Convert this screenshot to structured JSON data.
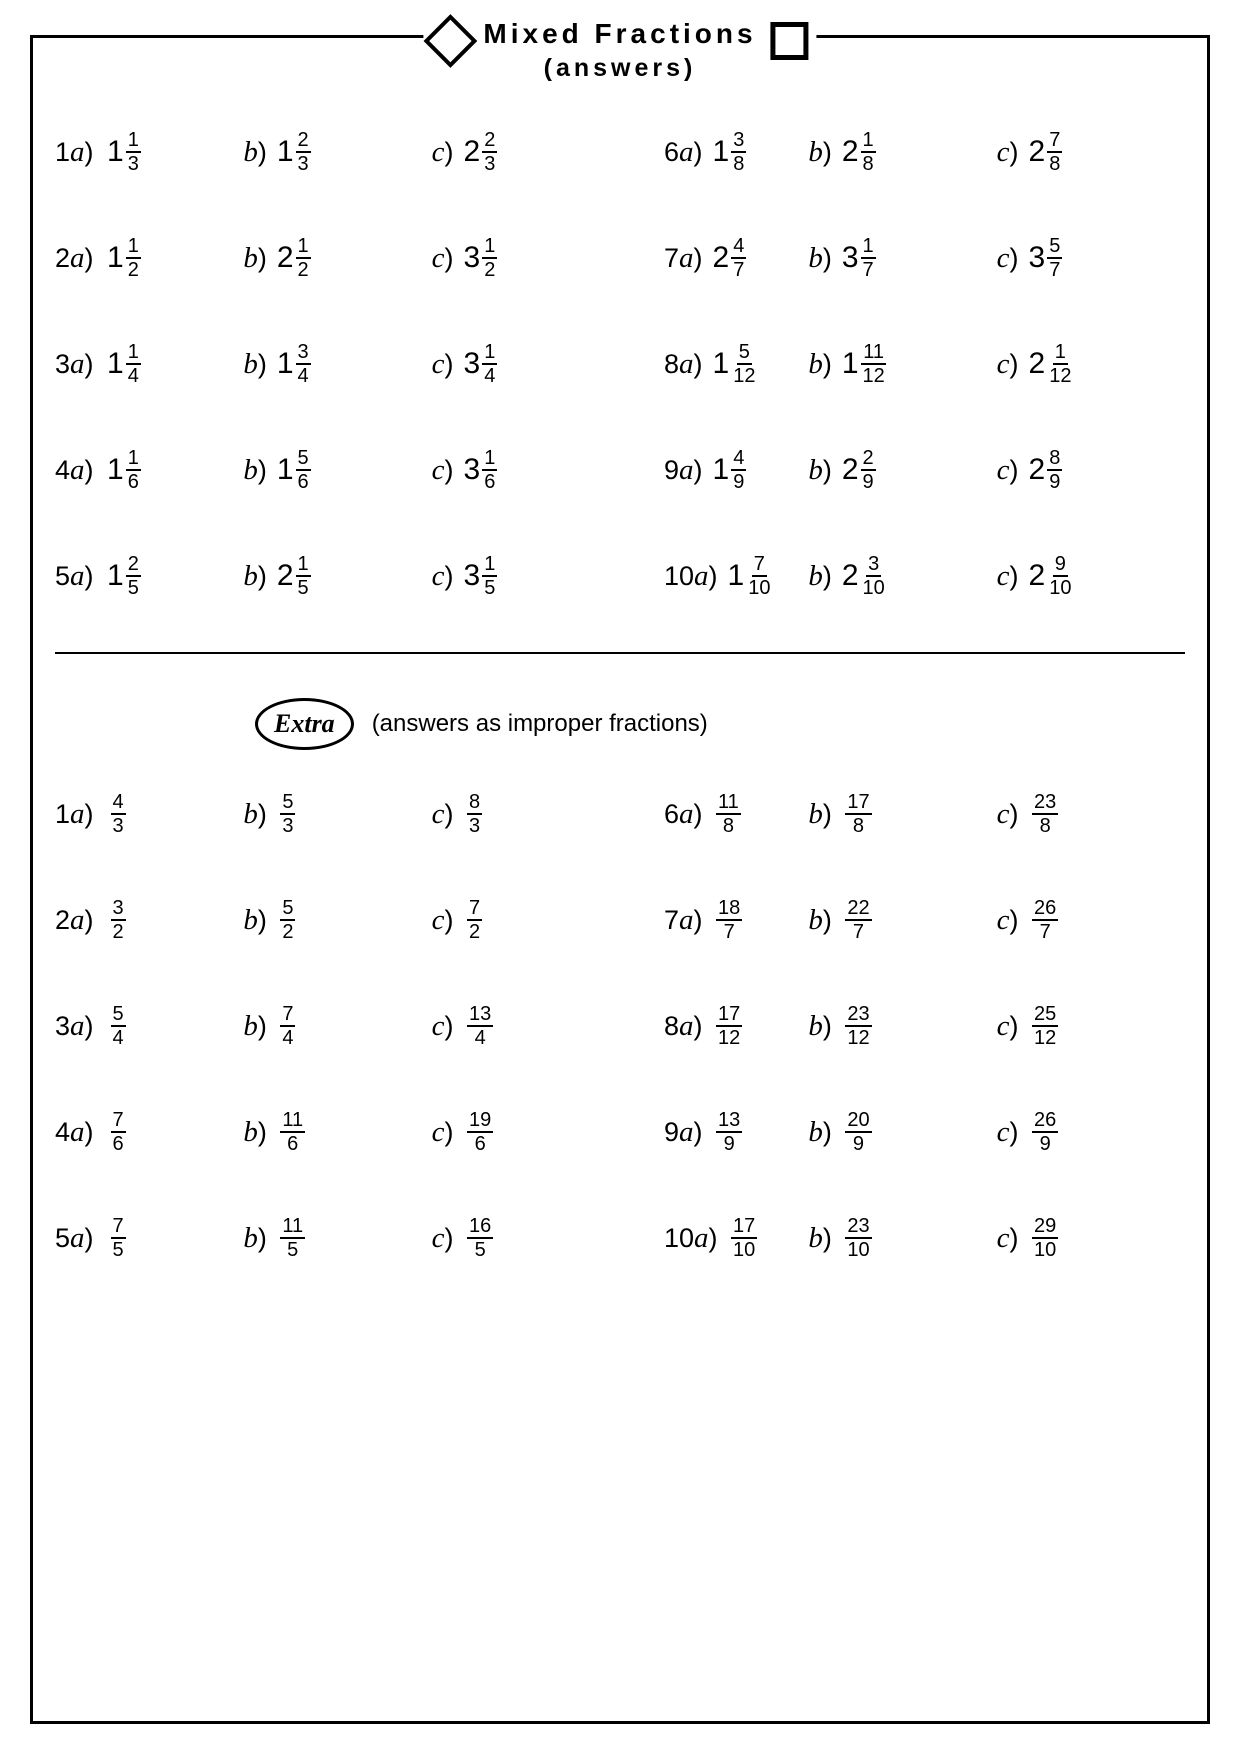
{
  "title": {
    "line1": "Mixed Fractions",
    "line2": "(answers)"
  },
  "extra": {
    "badge": "Extra",
    "sub": "(answers as improper fractions)"
  },
  "mixed": [
    [
      {
        "q": "1",
        "s": "a",
        "w": "1",
        "n": "1",
        "d": "3"
      },
      {
        "q": "",
        "s": "b",
        "w": "1",
        "n": "2",
        "d": "3"
      },
      {
        "q": "",
        "s": "c",
        "w": "2",
        "n": "2",
        "d": "3"
      },
      {
        "q": "6",
        "s": "a",
        "w": "1",
        "n": "3",
        "d": "8"
      },
      {
        "q": "",
        "s": "b",
        "w": "2",
        "n": "1",
        "d": "8"
      },
      {
        "q": "",
        "s": "c",
        "w": "2",
        "n": "7",
        "d": "8"
      }
    ],
    [
      {
        "q": "2",
        "s": "a",
        "w": "1",
        "n": "1",
        "d": "2"
      },
      {
        "q": "",
        "s": "b",
        "w": "2",
        "n": "1",
        "d": "2"
      },
      {
        "q": "",
        "s": "c",
        "w": "3",
        "n": "1",
        "d": "2"
      },
      {
        "q": "7",
        "s": "a",
        "w": "2",
        "n": "4",
        "d": "7"
      },
      {
        "q": "",
        "s": "b",
        "w": "3",
        "n": "1",
        "d": "7"
      },
      {
        "q": "",
        "s": "c",
        "w": "3",
        "n": "5",
        "d": "7"
      }
    ],
    [
      {
        "q": "3",
        "s": "a",
        "w": "1",
        "n": "1",
        "d": "4"
      },
      {
        "q": "",
        "s": "b",
        "w": "1",
        "n": "3",
        "d": "4"
      },
      {
        "q": "",
        "s": "c",
        "w": "3",
        "n": "1",
        "d": "4"
      },
      {
        "q": "8",
        "s": "a",
        "w": "1",
        "n": "5",
        "d": "12"
      },
      {
        "q": "",
        "s": "b",
        "w": "1",
        "n": "11",
        "d": "12"
      },
      {
        "q": "",
        "s": "c",
        "w": "2",
        "n": "1",
        "d": "12"
      }
    ],
    [
      {
        "q": "4",
        "s": "a",
        "w": "1",
        "n": "1",
        "d": "6"
      },
      {
        "q": "",
        "s": "b",
        "w": "1",
        "n": "5",
        "d": "6"
      },
      {
        "q": "",
        "s": "c",
        "w": "3",
        "n": "1",
        "d": "6"
      },
      {
        "q": "9",
        "s": "a",
        "w": "1",
        "n": "4",
        "d": "9"
      },
      {
        "q": "",
        "s": "b",
        "w": "2",
        "n": "2",
        "d": "9"
      },
      {
        "q": "",
        "s": "c",
        "w": "2",
        "n": "8",
        "d": "9"
      }
    ],
    [
      {
        "q": "5",
        "s": "a",
        "w": "1",
        "n": "2",
        "d": "5"
      },
      {
        "q": "",
        "s": "b",
        "w": "2",
        "n": "1",
        "d": "5"
      },
      {
        "q": "",
        "s": "c",
        "w": "3",
        "n": "1",
        "d": "5"
      },
      {
        "q": "10",
        "s": "a",
        "w": "1",
        "n": "7",
        "d": "10"
      },
      {
        "q": "",
        "s": "b",
        "w": "2",
        "n": "3",
        "d": "10"
      },
      {
        "q": "",
        "s": "c",
        "w": "2",
        "n": "9",
        "d": "10"
      }
    ]
  ],
  "improper": [
    [
      {
        "q": "1",
        "s": "a",
        "n": "4",
        "d": "3"
      },
      {
        "q": "",
        "s": "b",
        "n": "5",
        "d": "3"
      },
      {
        "q": "",
        "s": "c",
        "n": "8",
        "d": "3"
      },
      {
        "q": "6",
        "s": "a",
        "n": "11",
        "d": "8"
      },
      {
        "q": "",
        "s": "b",
        "n": "17",
        "d": "8"
      },
      {
        "q": "",
        "s": "c",
        "n": "23",
        "d": "8"
      }
    ],
    [
      {
        "q": "2",
        "s": "a",
        "n": "3",
        "d": "2"
      },
      {
        "q": "",
        "s": "b",
        "n": "5",
        "d": "2"
      },
      {
        "q": "",
        "s": "c",
        "n": "7",
        "d": "2"
      },
      {
        "q": "7",
        "s": "a",
        "n": "18",
        "d": "7"
      },
      {
        "q": "",
        "s": "b",
        "n": "22",
        "d": "7"
      },
      {
        "q": "",
        "s": "c",
        "n": "26",
        "d": "7"
      }
    ],
    [
      {
        "q": "3",
        "s": "a",
        "n": "5",
        "d": "4"
      },
      {
        "q": "",
        "s": "b",
        "n": "7",
        "d": "4"
      },
      {
        "q": "",
        "s": "c",
        "n": "13",
        "d": "4"
      },
      {
        "q": "8",
        "s": "a",
        "n": "17",
        "d": "12"
      },
      {
        "q": "",
        "s": "b",
        "n": "23",
        "d": "12"
      },
      {
        "q": "",
        "s": "c",
        "n": "25",
        "d": "12"
      }
    ],
    [
      {
        "q": "4",
        "s": "a",
        "n": "7",
        "d": "6"
      },
      {
        "q": "",
        "s": "b",
        "n": "11",
        "d": "6"
      },
      {
        "q": "",
        "s": "c",
        "n": "19",
        "d": "6"
      },
      {
        "q": "9",
        "s": "a",
        "n": "13",
        "d": "9"
      },
      {
        "q": "",
        "s": "b",
        "n": "20",
        "d": "9"
      },
      {
        "q": "",
        "s": "c",
        "n": "26",
        "d": "9"
      }
    ],
    [
      {
        "q": "5",
        "s": "a",
        "n": "7",
        "d": "5"
      },
      {
        "q": "",
        "s": "b",
        "n": "11",
        "d": "5"
      },
      {
        "q": "",
        "s": "c",
        "n": "16",
        "d": "5"
      },
      {
        "q": "10",
        "s": "a",
        "n": "17",
        "d": "10"
      },
      {
        "q": "",
        "s": "b",
        "n": "23",
        "d": "10"
      },
      {
        "q": "",
        "s": "c",
        "n": "29",
        "d": "10"
      }
    ]
  ]
}
